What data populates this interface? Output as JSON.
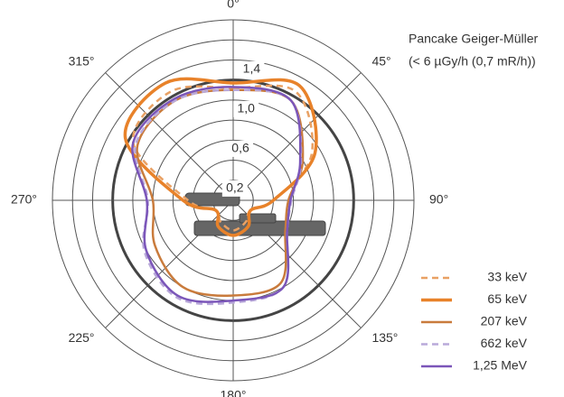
{
  "chart_data": {
    "type": "polar",
    "annotations": [
      "Pancake Geiger-Müller",
      "(< 6 µGy/h (0,7 mR/h))"
    ],
    "theta": [
      0,
      30,
      60,
      90,
      120,
      150,
      180,
      210,
      240,
      270,
      300,
      330
    ],
    "rlim": [
      0,
      1.8
    ],
    "rgrid": [
      0.2,
      0.4,
      0.6,
      0.8,
      1.0,
      1.2,
      1.4,
      1.6,
      1.8
    ],
    "reference_circle": 1.2,
    "rticks": [
      {
        "value": 0.2,
        "label": "0,2"
      },
      {
        "value": 0.6,
        "label": "0,6"
      },
      {
        "value": 1.0,
        "label": "1,0"
      },
      {
        "value": 1.4,
        "label": "1,4"
      }
    ],
    "thetaticks": [
      {
        "value": 0,
        "label": "0°"
      },
      {
        "value": 45,
        "label": "45°"
      },
      {
        "value": 90,
        "label": "90°"
      },
      {
        "value": 135,
        "label": "135°"
      },
      {
        "value": 180,
        "label": "180°"
      },
      {
        "value": 225,
        "label": "225°"
      },
      {
        "value": 270,
        "label": "270°"
      },
      {
        "value": 315,
        "label": "315°"
      }
    ],
    "series": [
      {
        "name": "33 keV",
        "color": "#e9a164",
        "dashed": true,
        "values": [
          1.12,
          1.25,
          0.9,
          0.4,
          0.2,
          0.25,
          0.3,
          0.25,
          0.2,
          0.45,
          1.15,
          1.25
        ]
      },
      {
        "name": "65 keV",
        "color": "#e8822a",
        "dashed": false,
        "values": [
          1.17,
          1.32,
          0.94,
          0.4,
          0.2,
          0.3,
          0.35,
          0.3,
          0.2,
          0.5,
          1.24,
          1.35
        ]
      },
      {
        "name": "207 keV",
        "color": "#c97b3c",
        "dashed": false,
        "values": [
          1.1,
          1.15,
          0.8,
          0.55,
          0.6,
          0.95,
          0.95,
          1.0,
          0.9,
          0.8,
          1.1,
          1.15
        ]
      },
      {
        "name": "662 keV",
        "color": "#b9a9da",
        "dashed": true,
        "values": [
          1.1,
          1.15,
          0.78,
          0.58,
          0.62,
          1.0,
          1.02,
          1.12,
          1.02,
          0.85,
          1.12,
          1.15
        ]
      },
      {
        "name": "1,25 MeV",
        "color": "#7b56b9",
        "dashed": false,
        "values": [
          1.13,
          1.15,
          0.77,
          0.57,
          0.62,
          1.0,
          1.0,
          1.1,
          1.0,
          0.86,
          1.15,
          1.17
        ]
      }
    ]
  }
}
